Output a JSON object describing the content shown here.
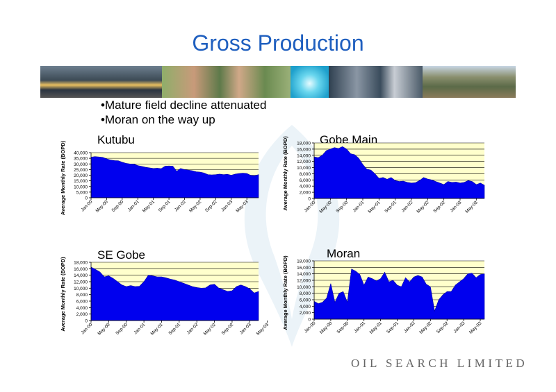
{
  "title": "Gross Production",
  "bullets": [
    "Mature field decline attenuated",
    "Moran on the way up"
  ],
  "footer": "OIL SEARCH LIMITED",
  "colors": {
    "title": "#1f5fbf",
    "fill": "#0000ee",
    "plot_bg": "#ffffcc"
  },
  "chart_data": [
    {
      "type": "area",
      "title": "Kutubu",
      "ylabel": "Average Monthly Rate (BOPD)",
      "ylim": [
        0,
        40000
      ],
      "yticks": [
        "0",
        "5,000",
        "10,000",
        "15,000",
        "20,000",
        "25,000",
        "30,000",
        "35,000",
        "40,000"
      ],
      "xticks": [
        "Jan-00",
        "May-00",
        "Sep-00",
        "Jan-01",
        "May-01",
        "Sep-01",
        "Jan-02",
        "May-02",
        "Sep-02",
        "Jan-03",
        "May-03"
      ],
      "values": [
        36000,
        36500,
        36200,
        35800,
        34500,
        33500,
        33000,
        32800,
        31500,
        30500,
        30000,
        29800,
        28500,
        27800,
        27000,
        26500,
        26000,
        26200,
        25800,
        28000,
        28200,
        28000,
        23500,
        26000,
        25000,
        24500,
        24000,
        23000,
        22800,
        22000,
        20500,
        20300,
        20500,
        21000,
        20500,
        20800,
        20000,
        21000,
        21500,
        21800,
        21500,
        19800,
        19500,
        20500
      ]
    },
    {
      "type": "area",
      "title": "Gobe Main",
      "ylabel": "Average Monthly Rate (BOPD)",
      "ylim": [
        0,
        18000
      ],
      "yticks": [
        "0",
        "2,000",
        "4,000",
        "6,000",
        "8,000",
        "10,000",
        "12,000",
        "14,000",
        "16,000",
        "18,000"
      ],
      "xticks": [
        "Jan-00",
        "May-00",
        "Sep-00",
        "Jan-01",
        "May-01",
        "Sep-01",
        "Jan-02",
        "May-02",
        "Sep-02",
        "Jan-03",
        "May-03"
      ],
      "values": [
        13500,
        13200,
        14000,
        15500,
        16000,
        16500,
        16200,
        16800,
        16000,
        14500,
        14200,
        13000,
        11000,
        9500,
        9200,
        8000,
        6500,
        6800,
        6200,
        6800,
        5800,
        5500,
        5600,
        5200,
        5000,
        5100,
        5800,
        6800,
        6300,
        6000,
        5500,
        5000,
        4500,
        5500,
        5200,
        5300,
        5000,
        5200,
        5800,
        5500,
        4500,
        5000,
        4300
      ]
    },
    {
      "type": "area",
      "title": "SE Gobe",
      "ylabel": "Average Monthly Rate (BOPD)",
      "ylim": [
        0,
        18000
      ],
      "yticks": [
        "0",
        "2,000",
        "4,000",
        "6,000",
        "8,000",
        "10,000",
        "12,000",
        "14,000",
        "16,000",
        "18,000"
      ],
      "xticks": [
        "Jan-00",
        "May-00",
        "Sep-00",
        "Jan-01",
        "May-01",
        "Sep-01",
        "Jan-02",
        "May-02",
        "Sep-02",
        "Jan-03",
        "May-03"
      ],
      "values": [
        16500,
        15800,
        15000,
        13500,
        13800,
        13000,
        12000,
        11000,
        10500,
        10800,
        10500,
        10600,
        12000,
        14000,
        13800,
        13500,
        13500,
        13200,
        12800,
        12500,
        12000,
        11500,
        11000,
        10500,
        10200,
        10000,
        10100,
        11000,
        11200,
        10000,
        9500,
        9000,
        9200,
        10500,
        11000,
        10500,
        9800,
        8500,
        9000
      ]
    },
    {
      "type": "area",
      "title": "Moran",
      "ylabel": "Average Monthly Rate (BOPD)",
      "ylim": [
        0,
        18000
      ],
      "yticks": [
        "0",
        "2,000",
        "4,000",
        "6,000",
        "8,000",
        "10,000",
        "12,000",
        "14,000",
        "16,000",
        "18,000"
      ],
      "xticks": [
        "Jan-00",
        "May-00",
        "Sep-00",
        "Jan-01",
        "May-01",
        "Sep-01",
        "Jan-02",
        "May-02",
        "Sep-02",
        "Jan-03",
        "May-03"
      ],
      "values": [
        5500,
        4800,
        5200,
        6500,
        11000,
        5200,
        8000,
        8500,
        5200,
        15500,
        14800,
        13800,
        10500,
        13000,
        12500,
        11800,
        12500,
        14500,
        11500,
        12000,
        10500,
        10000,
        12800,
        11500,
        13000,
        13500,
        13000,
        10800,
        10000,
        2500,
        6000,
        7500,
        8500,
        8500,
        10500,
        11500,
        12500,
        14000,
        14200,
        12800,
        13800,
        14000
      ]
    }
  ]
}
